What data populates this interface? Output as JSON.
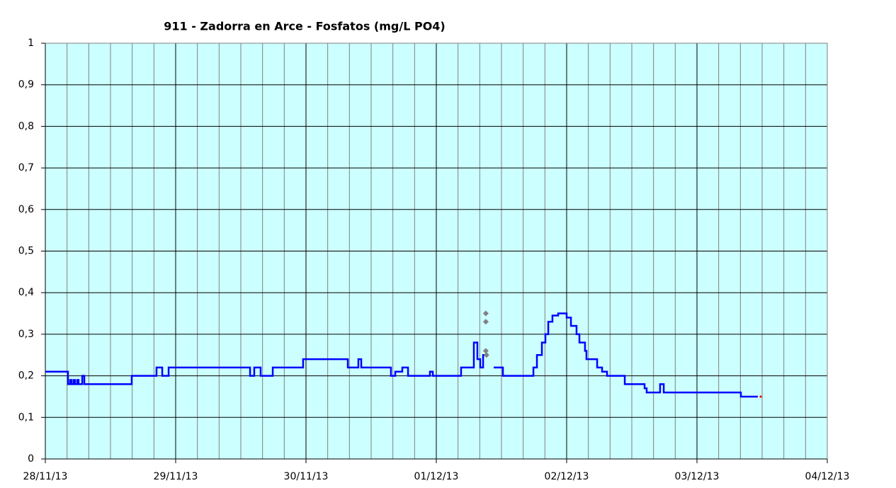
{
  "chart_data": {
    "type": "line",
    "title": "911 - Zadorra en Arce - Fosfatos (mg/L PO4)",
    "xlim": [
      0,
      6
    ],
    "xticks": [
      {
        "value": 0,
        "label": "28/11/13"
      },
      {
        "value": 1,
        "label": "29/11/13"
      },
      {
        "value": 2,
        "label": "30/11/13"
      },
      {
        "value": 3,
        "label": "01/12/13"
      },
      {
        "value": 4,
        "label": "02/12/13"
      },
      {
        "value": 5,
        "label": "03/12/13"
      },
      {
        "value": 6,
        "label": "04/12/13"
      }
    ],
    "ylim": [
      0,
      1
    ],
    "yticks": [
      0,
      {
        "value": 0.1,
        "label": "0,1"
      },
      {
        "value": 0.2,
        "label": "0,2"
      },
      {
        "value": 0.3,
        "label": "0,3"
      },
      {
        "value": 0.4,
        "label": "0,4"
      },
      {
        "value": 0.5,
        "label": "0,5"
      },
      {
        "value": 0.6,
        "label": "0,6"
      },
      {
        "value": 0.7,
        "label": "0,7"
      },
      {
        "value": 0.8,
        "label": "0,8"
      },
      {
        "value": 0.9,
        "label": "0,9"
      },
      1
    ],
    "grid": true,
    "minor_grid": true,
    "background": "#ccffff",
    "series": [
      {
        "color": "#0000ff",
        "mode": "step",
        "x": [
          0,
          0.174,
          0.19,
          0.201,
          0.217,
          0.228,
          0.245,
          0.255,
          0.283,
          0.299,
          0.663,
          0.853,
          0.897,
          0.946,
          1.571,
          1.603,
          1.652,
          1.745,
          1.978,
          2.321,
          2.402,
          2.424,
          2.652,
          2.685,
          2.739,
          2.783,
          2.951,
          2.973,
          3.19,
          3.288,
          3.315,
          3.337,
          3.359,
          3.38,
          3.44,
          3.511,
          3.745,
          3.772,
          3.81,
          3.837,
          3.859,
          3.891,
          3.935,
          4.0,
          4.033,
          4.076,
          4.098,
          4.141,
          4.152,
          4.234,
          4.272,
          4.31,
          4.446,
          4.598,
          4.614,
          4.717,
          4.745,
          5.337,
          5.467
        ],
        "values": [
          0.21,
          0.18,
          0.19,
          0.18,
          0.19,
          0.18,
          0.19,
          0.18,
          0.2,
          0.18,
          0.2,
          0.22,
          0.2,
          0.22,
          0.2,
          0.22,
          0.2,
          0.22,
          0.24,
          0.22,
          0.24,
          0.22,
          0.2,
          0.21,
          0.22,
          0.2,
          0.21,
          0.2,
          0.22,
          0.28,
          0.24,
          0.22,
          0.25,
          null,
          0.22,
          0.2,
          0.22,
          0.25,
          0.28,
          0.3,
          0.33,
          0.345,
          0.35,
          0.34,
          0.32,
          0.3,
          0.28,
          0.26,
          0.24,
          0.22,
          0.21,
          0.2,
          0.18,
          0.17,
          0.16,
          0.18,
          0.16,
          0.15,
          0.15
        ]
      },
      {
        "color": "#808080",
        "mode": "markers",
        "x": [
          3.38,
          3.38,
          3.38,
          3.385
        ],
        "values": [
          0.35,
          0.33,
          0.26,
          0.25
        ]
      },
      {
        "color": "#ff0000",
        "mode": "markers-small",
        "x": [
          5.489
        ],
        "values": [
          0.15
        ]
      }
    ]
  }
}
